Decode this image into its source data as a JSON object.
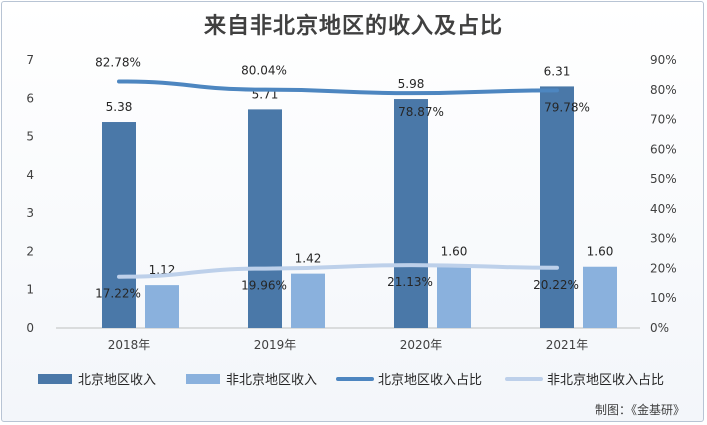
{
  "title": "来自非北京地区的收入及占比",
  "source": "制图：《金基研》",
  "chart_data": {
    "type": "bar",
    "categories": [
      "2018年",
      "2019年",
      "2020年",
      "2021年"
    ],
    "series": [
      {
        "name": "北京地区收入",
        "kind": "bar",
        "axis": "left",
        "values": [
          5.38,
          5.71,
          5.98,
          6.31
        ],
        "labels": [
          "5.38",
          "5.71",
          "5.98",
          "6.31"
        ],
        "color": "#4a78a8"
      },
      {
        "name": "非北京地区收入",
        "kind": "bar",
        "axis": "left",
        "values": [
          1.12,
          1.42,
          1.6,
          1.6
        ],
        "labels": [
          "1.12",
          "1.42",
          "1.60",
          "1.60"
        ],
        "color": "#8ab1dd"
      },
      {
        "name": "北京地区收入占比",
        "kind": "line",
        "axis": "right",
        "values": [
          82.78,
          80.04,
          78.87,
          79.78
        ],
        "labels": [
          "82.78%",
          "80.04%",
          "78.87%",
          "79.78%"
        ],
        "color": "#4d86c0"
      },
      {
        "name": "非北京地区收入占比",
        "kind": "line",
        "axis": "right",
        "values": [
          17.22,
          19.96,
          21.13,
          20.22
        ],
        "labels": [
          "17.22%",
          "19.96%",
          "21.13%",
          "20.22%"
        ],
        "color": "#bdd0ea"
      }
    ],
    "ylim_left": [
      0,
      7
    ],
    "yticks_left": [
      "0",
      "1",
      "2",
      "3",
      "4",
      "5",
      "6",
      "7"
    ],
    "ylim_right": [
      0,
      90
    ],
    "yticks_right": [
      "0%",
      "10%",
      "20%",
      "30%",
      "40%",
      "50%",
      "60%",
      "70%",
      "80%",
      "90%"
    ],
    "grid": false,
    "legend_position": "bottom"
  }
}
